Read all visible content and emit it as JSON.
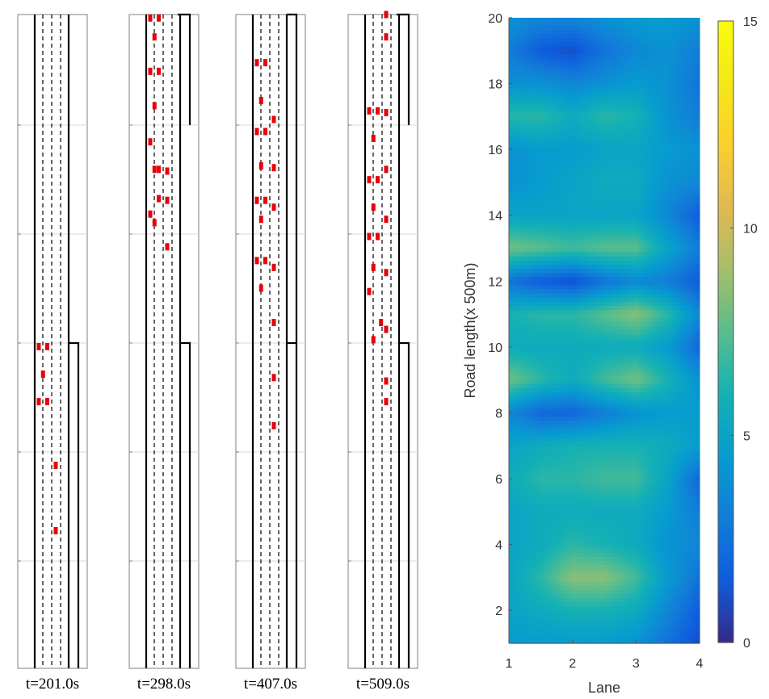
{
  "chart_data": [
    {
      "type": "scatter",
      "description_kind": "traffic-snapshots",
      "panels": [
        {
          "label": "t=201.0s",
          "ramp": "lower",
          "vehicles": [
            [
              1,
              10.35
            ],
            [
              2,
              10.35
            ],
            [
              1.5,
              9.55
            ],
            [
              1,
              8.75
            ],
            [
              2,
              8.75
            ],
            [
              3,
              6.9
            ],
            [
              3,
              5.0
            ]
          ]
        },
        {
          "label": "t=298.0s",
          "ramp": "upper",
          "vehicles": [
            [
              1,
              19.9
            ],
            [
              2,
              19.9
            ],
            [
              1.5,
              19.35
            ],
            [
              1,
              18.35
            ],
            [
              2,
              18.35
            ],
            [
              1.5,
              17.35
            ],
            [
              1,
              16.3
            ],
            [
              1.5,
              15.5
            ],
            [
              2,
              15.5
            ],
            [
              3,
              15.45
            ],
            [
              2,
              14.65
            ],
            [
              3,
              14.6
            ],
            [
              1,
              14.2
            ],
            [
              1.5,
              13.95
            ],
            [
              3,
              13.25
            ]
          ]
        },
        {
          "label": "t=407.0s",
          "ramp": "none",
          "vehicles": [
            [
              1,
              18.6
            ],
            [
              2,
              18.6
            ],
            [
              1.5,
              17.5
            ],
            [
              3,
              16.95
            ],
            [
              1,
              16.6
            ],
            [
              2,
              16.6
            ],
            [
              1.5,
              15.6
            ],
            [
              3,
              15.55
            ],
            [
              1,
              14.6
            ],
            [
              2,
              14.6
            ],
            [
              3,
              14.4
            ],
            [
              1.5,
              14.05
            ],
            [
              1,
              12.85
            ],
            [
              2,
              12.85
            ],
            [
              3,
              12.65
            ],
            [
              1.5,
              12.05
            ],
            [
              3,
              11.05
            ],
            [
              3,
              9.45
            ],
            [
              3,
              8.05
            ]
          ]
        },
        {
          "label": "t=509.0s",
          "ramp": "upper",
          "vehicles": [
            [
              3,
              20.0
            ],
            [
              3,
              19.35
            ],
            [
              1,
              17.2
            ],
            [
              2,
              17.2
            ],
            [
              3,
              17.15
            ],
            [
              1.5,
              16.4
            ],
            [
              3,
              15.5
            ],
            [
              1,
              15.2
            ],
            [
              2,
              15.2
            ],
            [
              1.5,
              14.4
            ],
            [
              3,
              14.05
            ],
            [
              1,
              13.55
            ],
            [
              2,
              13.55
            ],
            [
              1.5,
              12.65
            ],
            [
              3,
              12.5
            ],
            [
              1,
              11.95
            ],
            [
              2.4,
              11.05
            ],
            [
              3,
              10.85
            ],
            [
              1.5,
              10.55
            ],
            [
              3,
              9.35
            ],
            [
              3,
              8.75
            ]
          ]
        }
      ]
    },
    {
      "type": "heatmap",
      "title": "",
      "xlabel": "Lane",
      "ylabel": "Road length(x 500m)",
      "xlim": [
        1,
        4
      ],
      "ylim": [
        1,
        20
      ],
      "xticks": [
        "1",
        "2",
        "3",
        "4"
      ],
      "yticks": [
        "2",
        "4",
        "6",
        "8",
        "10",
        "12",
        "14",
        "16",
        "18",
        "20"
      ],
      "colorbar": {
        "min": 0,
        "max": 15,
        "ticks": [
          "0",
          "5",
          "10",
          "15"
        ],
        "colormap": "parula"
      },
      "x": [
        1,
        1.5,
        2,
        2.5,
        3,
        3.5,
        4
      ],
      "y": [
        1,
        2,
        3,
        4,
        5,
        6,
        7,
        8,
        9,
        10,
        11,
        12,
        13,
        14,
        15,
        16,
        17,
        18,
        19,
        20
      ],
      "values": [
        [
          4.5,
          4.5,
          4.5,
          4.5,
          4.0,
          2.5,
          1.0
        ],
        [
          5.0,
          5.5,
          6.0,
          6.0,
          5.5,
          3.5,
          1.5
        ],
        [
          5.0,
          6.5,
          8.5,
          8.5,
          7.0,
          4.5,
          2.5
        ],
        [
          5.0,
          5.5,
          6.5,
          6.0,
          5.5,
          4.0,
          3.5
        ],
        [
          5.0,
          5.5,
          5.5,
          5.5,
          5.5,
          4.5,
          3.0
        ],
        [
          5.5,
          6.5,
          6.5,
          7.0,
          7.0,
          5.0,
          2.0
        ],
        [
          5.0,
          5.5,
          6.0,
          6.0,
          6.0,
          5.5,
          4.5
        ],
        [
          3.5,
          2.0,
          2.0,
          3.0,
          4.0,
          4.5,
          4.5
        ],
        [
          8.0,
          6.5,
          5.5,
          7.0,
          8.0,
          6.0,
          4.0
        ],
        [
          5.5,
          5.5,
          5.5,
          5.5,
          5.5,
          4.5,
          2.0
        ],
        [
          6.0,
          6.5,
          6.5,
          7.5,
          8.5,
          6.5,
          3.5
        ],
        [
          2.5,
          1.5,
          1.0,
          2.5,
          3.5,
          3.0,
          1.5
        ],
        [
          8.0,
          7.5,
          7.0,
          7.5,
          7.5,
          5.0,
          3.0
        ],
        [
          5.0,
          5.0,
          5.0,
          5.0,
          5.0,
          3.5,
          1.5
        ],
        [
          4.0,
          4.5,
          5.0,
          5.5,
          5.5,
          4.0,
          3.5
        ],
        [
          4.0,
          4.5,
          4.5,
          5.0,
          5.0,
          4.5,
          4.0
        ],
        [
          6.5,
          6.5,
          5.5,
          6.5,
          6.0,
          4.0,
          3.0
        ],
        [
          4.0,
          4.0,
          3.5,
          4.0,
          4.5,
          4.0,
          2.5
        ],
        [
          3.0,
          1.5,
          1.0,
          2.5,
          3.5,
          4.0,
          3.0
        ],
        [
          4.0,
          3.5,
          3.5,
          4.0,
          4.5,
          4.5,
          4.0
        ]
      ]
    }
  ]
}
